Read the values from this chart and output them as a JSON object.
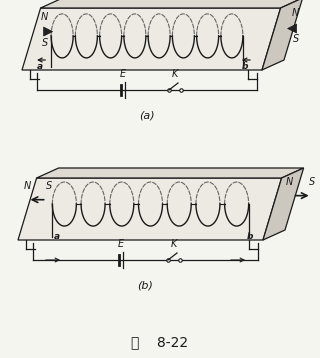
{
  "fig_label": "图    8-22",
  "subfig_a_label": "(a)",
  "subfig_b_label": "(b)",
  "bg_color": "#f5f5f0",
  "line_color": "#1a1a1a",
  "dashed_color": "#666666",
  "n_coils_a": 8,
  "n_coils_b": 7,
  "title_fontsize": 10,
  "label_fontsize": 8
}
